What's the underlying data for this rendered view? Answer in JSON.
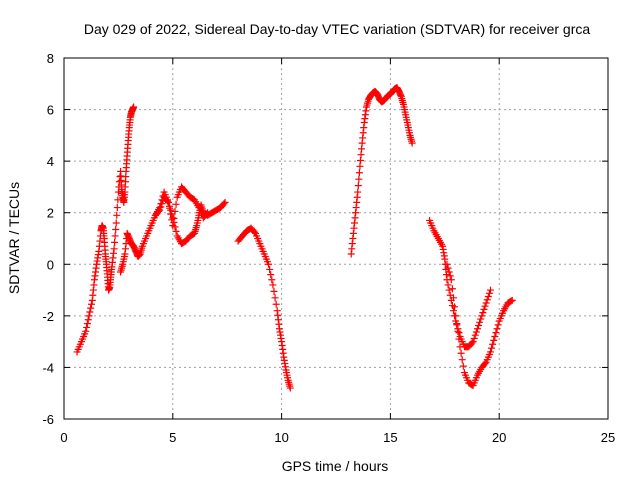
{
  "chart_data": {
    "type": "scatter",
    "title": "Day 029 of 2022, Sidereal Day-to-day VTEC variation (SDTVAR) for receiver grca",
    "xlabel": "GPS time / hours",
    "ylabel": "SDTVAR / TECUs",
    "xlim": [
      0,
      25
    ],
    "ylim": [
      -6,
      8
    ],
    "xticks": [
      "0",
      "5",
      "10",
      "15",
      "20",
      "25"
    ],
    "yticks": [
      "-6",
      "-4",
      "-2",
      "0",
      "2",
      "4",
      "6",
      "8"
    ],
    "grid": true,
    "marker": "+",
    "colors": {
      "series": "#ff0000",
      "grid": "#a0a0a0",
      "axes": "#000000"
    },
    "series": [
      {
        "name": "SDTVAR",
        "segments": [
          {
            "x": [
              0.6,
              0.8,
              1.0,
              1.15,
              1.3,
              1.4,
              1.5,
              1.6,
              1.7,
              1.75,
              1.8,
              1.85,
              1.9,
              1.95,
              2.0,
              2.05,
              2.1,
              2.15,
              2.2,
              2.3,
              2.4,
              2.5,
              2.6,
              2.65,
              2.7,
              2.75,
              2.8,
              2.85,
              2.9,
              2.95,
              3.0,
              3.05,
              3.1,
              3.15,
              3.2
            ],
            "y": [
              -3.4,
              -3.0,
              -2.6,
              -2.0,
              -1.4,
              -0.6,
              0.0,
              0.5,
              1.3,
              1.5,
              1.4,
              1.0,
              0.4,
              0.0,
              -0.5,
              -1.0,
              -0.9,
              -0.5,
              -0.1,
              0.6,
              1.6,
              2.8,
              3.6,
              2.9,
              2.6,
              2.4,
              2.8,
              3.6,
              4.2,
              4.8,
              5.3,
              5.7,
              5.9,
              6.0,
              6.1
            ]
          },
          {
            "x": [
              2.6,
              2.7,
              2.8,
              2.9,
              3.0,
              3.1,
              3.2,
              3.3,
              3.4,
              3.5,
              3.6,
              3.8,
              4.0,
              4.2,
              4.4,
              4.6,
              4.8,
              5.0,
              5.2,
              5.4,
              5.6,
              5.8,
              6.0,
              6.1,
              6.2,
              6.3,
              6.4,
              6.6,
              6.8,
              7.0,
              7.2,
              7.4
            ],
            "y": [
              -0.3,
              0.0,
              0.4,
              1.2,
              1.0,
              0.8,
              0.7,
              0.5,
              0.3,
              0.4,
              0.7,
              1.1,
              1.5,
              1.9,
              2.1,
              2.6,
              2.4,
              1.8,
              1.1,
              0.8,
              0.9,
              1.1,
              1.2,
              1.5,
              1.9,
              2.3,
              2.0,
              1.9,
              2.0,
              2.1,
              2.2,
              2.4
            ]
          },
          {
            "x": [
              4.2,
              4.4,
              4.6,
              4.8,
              5.0,
              5.2,
              5.4,
              5.6,
              5.8,
              6.0,
              6.2,
              6.4,
              6.6
            ],
            "y": [
              1.9,
              2.2,
              2.8,
              2.4,
              1.5,
              2.6,
              3.0,
              2.8,
              2.6,
              2.5,
              2.2,
              1.8,
              2.0
            ]
          },
          {
            "x": [
              8.0,
              8.2,
              8.4,
              8.6,
              8.8,
              9.0,
              9.2,
              9.4,
              9.6,
              9.8,
              9.9,
              10.0,
              10.1,
              10.2,
              10.3,
              10.4
            ],
            "y": [
              0.9,
              1.1,
              1.3,
              1.4,
              1.2,
              0.8,
              0.4,
              0.0,
              -0.8,
              -1.8,
              -2.5,
              -3.0,
              -3.6,
              -4.1,
              -4.5,
              -4.8
            ]
          },
          {
            "x": [
              13.2,
              13.3,
              13.4,
              13.5,
              13.6,
              13.7,
              13.8,
              13.9,
              14.0,
              14.1,
              14.2,
              14.3,
              14.4,
              14.5,
              14.6,
              14.7,
              14.8,
              14.9,
              15.0,
              15.1,
              15.2,
              15.3,
              15.4,
              15.5,
              15.6,
              15.7,
              15.8,
              15.9,
              16.0
            ],
            "y": [
              0.4,
              1.2,
              2.0,
              2.8,
              3.8,
              4.7,
              5.5,
              6.1,
              6.4,
              6.55,
              6.65,
              6.7,
              6.6,
              6.4,
              6.3,
              6.35,
              6.45,
              6.55,
              6.6,
              6.7,
              6.8,
              6.85,
              6.7,
              6.5,
              6.2,
              5.8,
              5.4,
              5.0,
              4.7
            ]
          },
          {
            "x": [
              16.8,
              17.0,
              17.2,
              17.4,
              17.5,
              17.6,
              17.8,
              18.0,
              18.2,
              18.4,
              18.6,
              18.8,
              19.0,
              19.2,
              19.4,
              19.6
            ],
            "y": [
              1.7,
              1.3,
              1.0,
              0.7,
              0.2,
              -0.6,
              -1.4,
              -2.2,
              -2.8,
              -3.2,
              -3.2,
              -3.0,
              -2.5,
              -2.0,
              -1.5,
              -1.0
            ]
          },
          {
            "x": [
              17.6,
              17.8,
              18.0,
              18.2,
              18.4,
              18.6,
              18.8,
              19.0,
              19.2,
              19.4,
              19.6,
              19.8,
              20.0,
              20.2,
              20.4,
              20.6
            ],
            "y": [
              0.0,
              -0.6,
              -2.0,
              -3.2,
              -4.2,
              -4.6,
              -4.7,
              -4.3,
              -4.0,
              -3.8,
              -3.4,
              -2.8,
              -2.2,
              -1.8,
              -1.5,
              -1.4
            ]
          }
        ]
      }
    ]
  }
}
